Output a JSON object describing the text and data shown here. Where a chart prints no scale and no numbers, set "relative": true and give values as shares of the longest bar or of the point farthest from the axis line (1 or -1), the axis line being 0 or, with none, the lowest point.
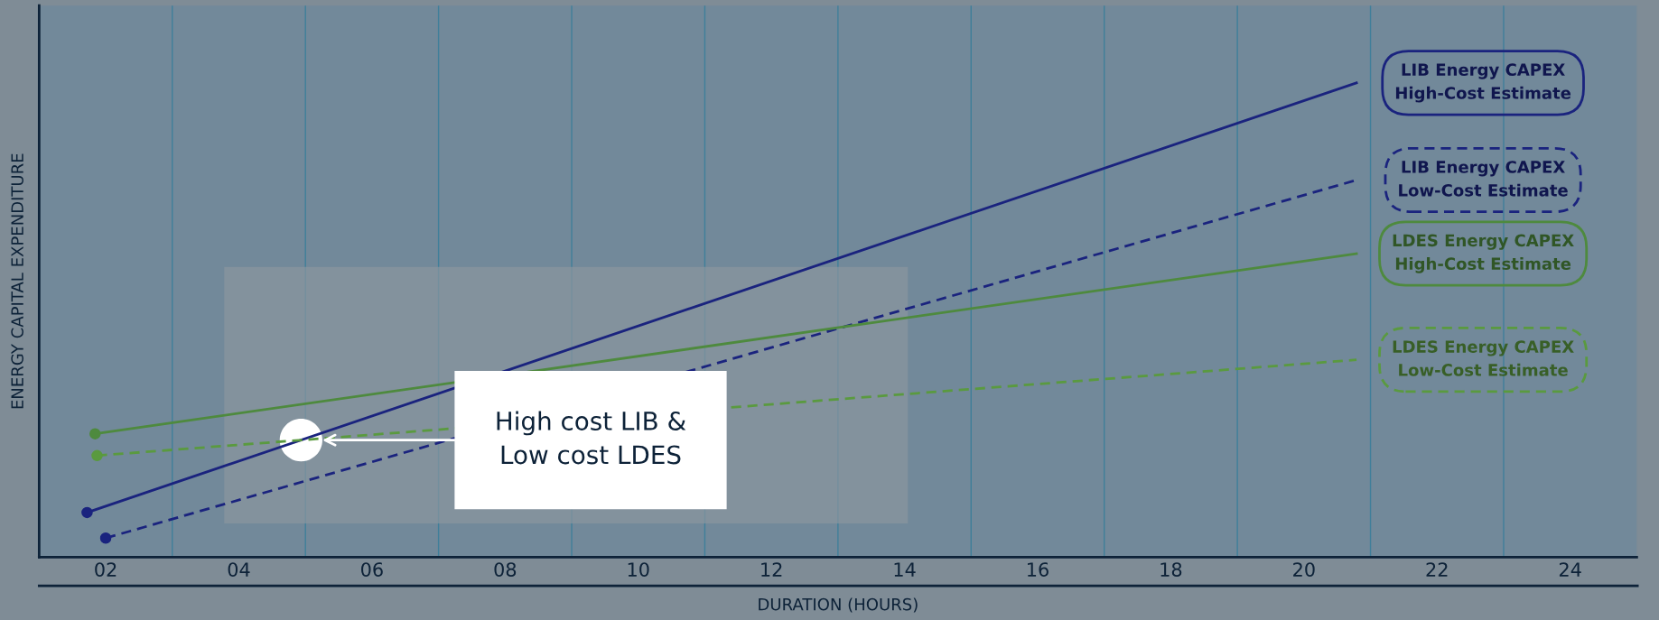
{
  "chart_data": {
    "type": "line",
    "xlabel": "DURATION (HOURS)",
    "ylabel": "ENERGY CAPITAL EXPENDITURE",
    "relative": true,
    "xlim": [
      1,
      25
    ],
    "xticks": [
      {
        "value": 2,
        "label": "02"
      },
      {
        "value": 4,
        "label": "04"
      },
      {
        "value": 6,
        "label": "06"
      },
      {
        "value": 8,
        "label": "08"
      },
      10,
      12,
      14,
      16,
      18,
      20,
      22,
      24
    ],
    "marker": "circle",
    "grid": false,
    "series": [
      {
        "name": "LIB Energy CAPEX\nHigh-Cost Estimate",
        "color": "#1a237e",
        "line_style": "solid",
        "x": [
          1.72,
          20.79
        ],
        "values": [
          0.094,
          1.0
        ]
      },
      {
        "name": "LIB Energy CAPEX\nLow-Cost Estimate",
        "color": "#1a237e",
        "line_style": "dashed",
        "x": [
          2.0,
          20.79
        ],
        "values": [
          0.04,
          0.795
        ]
      },
      {
        "name": "LDES Energy CAPEX\nHigh-Cost Estimate",
        "color": "#4e8a3e",
        "line_style": "solid",
        "x": [
          1.84,
          20.79
        ],
        "values": [
          0.26,
          0.64
        ]
      },
      {
        "name": "LDES Energy CAPEX\nLow-Cost Estimate",
        "color": "#5a9a3f",
        "line_style": "dashed",
        "x": [
          1.87,
          20.79
        ],
        "values": [
          0.214,
          0.416
        ]
      }
    ],
    "ref_lines": [
      {
        "axis": "x",
        "value": 3,
        "color": "#3f7f9a"
      },
      {
        "axis": "x",
        "value": 5,
        "color": "#3f7f9a"
      },
      {
        "axis": "x",
        "value": 7,
        "color": "#3f7f9a"
      },
      {
        "axis": "x",
        "value": 9,
        "color": "#3f7f9a"
      },
      {
        "axis": "x",
        "value": 11,
        "color": "#3f7f9a"
      },
      {
        "axis": "x",
        "value": 13,
        "color": "#3f7f9a"
      },
      {
        "axis": "x",
        "value": 15,
        "color": "#3f7f9a"
      },
      {
        "axis": "x",
        "value": 17,
        "color": "#3f7f9a"
      },
      {
        "axis": "x",
        "value": 19,
        "color": "#3f7f9a"
      },
      {
        "axis": "x",
        "value": 21,
        "color": "#3f7f9a"
      },
      {
        "axis": "x",
        "value": 23,
        "color": "#3f7f9a"
      }
    ],
    "annotations": [
      "High cost LIB &\nLow cost LDES"
    ]
  }
}
